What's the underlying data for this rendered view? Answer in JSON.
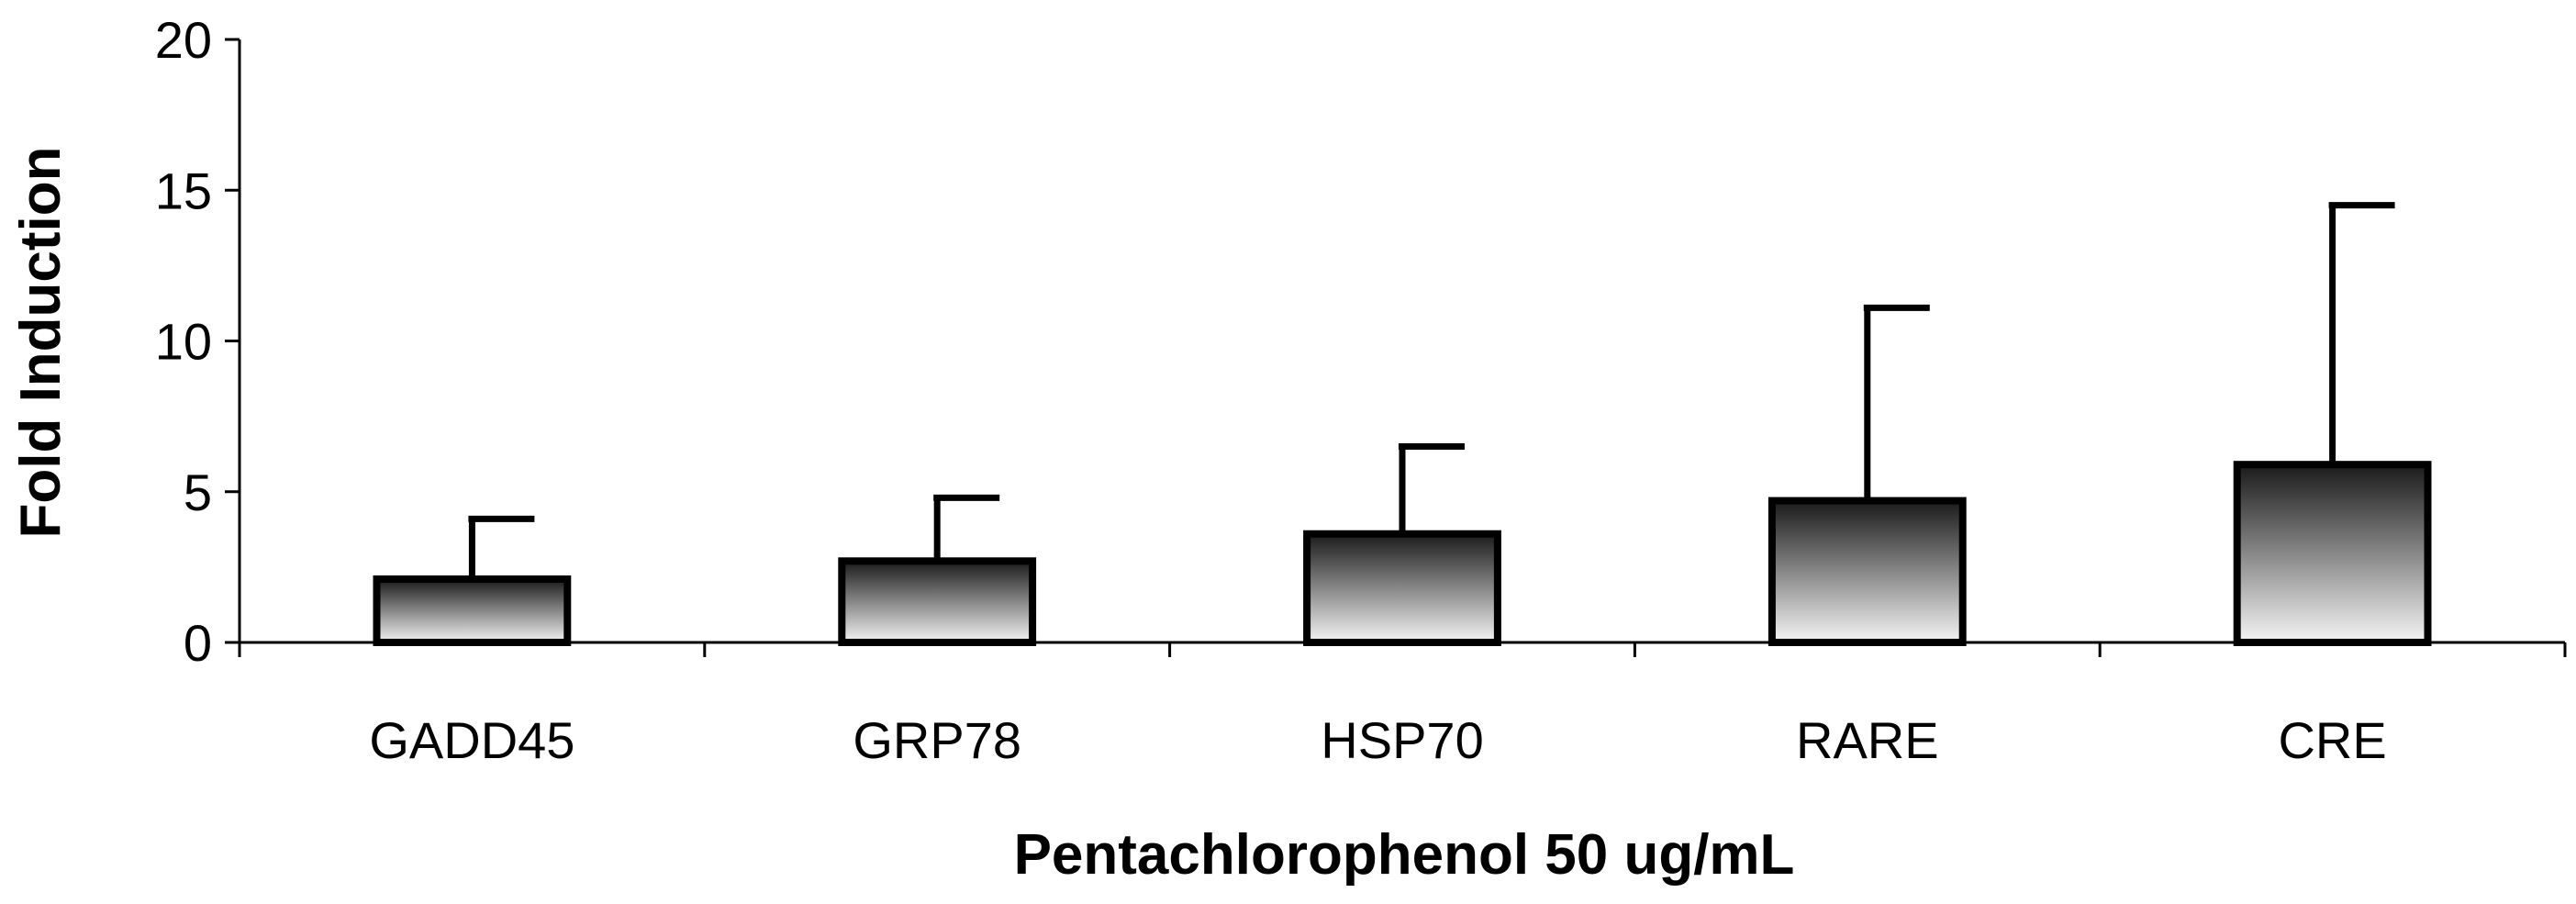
{
  "chart_data": {
    "type": "bar",
    "title": "",
    "xlabel": "Pentachlorophenol 50 ug/mL",
    "ylabel": "Fold Induction",
    "ylim": [
      0,
      20
    ],
    "yticks": [
      0,
      5,
      10,
      15,
      20
    ],
    "grid": false,
    "categories": [
      "GADD45",
      "GRP78",
      "HSP70",
      "RARE",
      "CRE"
    ],
    "values": [
      2.1,
      2.7,
      3.6,
      4.7,
      5.9
    ],
    "error_upper": [
      4.1,
      4.8,
      6.5,
      11.1,
      14.5
    ],
    "bar_fill": {
      "top": "#1a1a1a",
      "bottom": "#f5f5f5"
    }
  }
}
